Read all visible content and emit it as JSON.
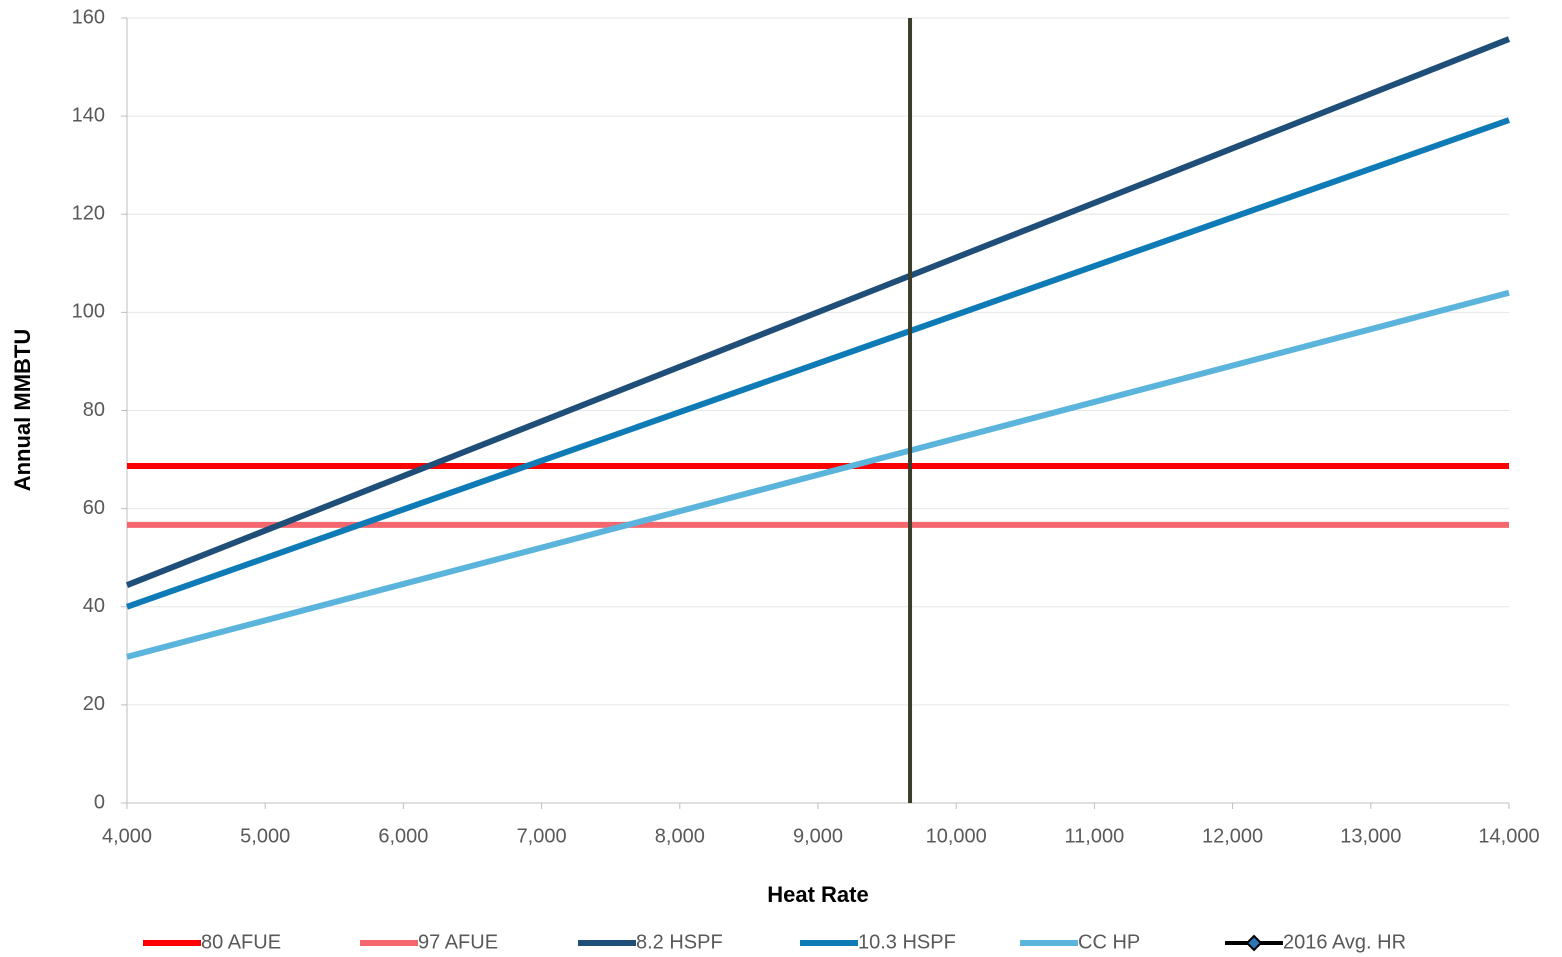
{
  "chart_data": {
    "type": "line",
    "xlabel": "Heat Rate",
    "ylabel": "Annual MMBTU",
    "xlim": [
      4000,
      14000
    ],
    "xticks": [
      {
        "value": 4000,
        "label": "4,000"
      },
      {
        "value": 5000,
        "label": "5,000"
      },
      {
        "value": 6000,
        "label": "6,000"
      },
      {
        "value": 7000,
        "label": "7,000"
      },
      {
        "value": 8000,
        "label": "8,000"
      },
      {
        "value": 9000,
        "label": "9,000"
      },
      {
        "value": 10000,
        "label": "10,000"
      },
      {
        "value": 11000,
        "label": "11,000"
      },
      {
        "value": 12000,
        "label": "12,000"
      },
      {
        "value": 13000,
        "label": "13,000"
      },
      {
        "value": 14000,
        "label": "14,000"
      }
    ],
    "ylim": [
      0,
      160
    ],
    "yticks": [
      0,
      20,
      40,
      60,
      80,
      100,
      120,
      140,
      160
    ],
    "grid": true,
    "legend": "bottom",
    "series": [
      {
        "name": "80 AFUE",
        "color": "#ff0000",
        "x": [
          4000,
          14000
        ],
        "values": [
          68.7,
          68.7
        ]
      },
      {
        "name": "97 AFUE",
        "color": "#f4676e",
        "x": [
          4000,
          14000
        ],
        "values": [
          56.7,
          56.7
        ]
      },
      {
        "name": "8.2 HSPF",
        "color": "#1f4e79",
        "x": [
          4000,
          14000
        ],
        "values": [
          44.4,
          155.7
        ]
      },
      {
        "name": "10.3 HSPF",
        "color": "#0e7bb6",
        "x": [
          4000,
          14000
        ],
        "values": [
          40.0,
          139.2
        ]
      },
      {
        "name": "CC HP",
        "color": "#5bb4db",
        "x": [
          4000,
          14000
        ],
        "values": [
          29.8,
          104.0
        ]
      },
      {
        "name": "2016 Avg. HR",
        "color": "#3d3d2c",
        "x": [
          9666,
          9666
        ],
        "values": [
          0,
          160
        ],
        "marker": "diamond",
        "marker_color": "#2e75b6"
      }
    ]
  }
}
